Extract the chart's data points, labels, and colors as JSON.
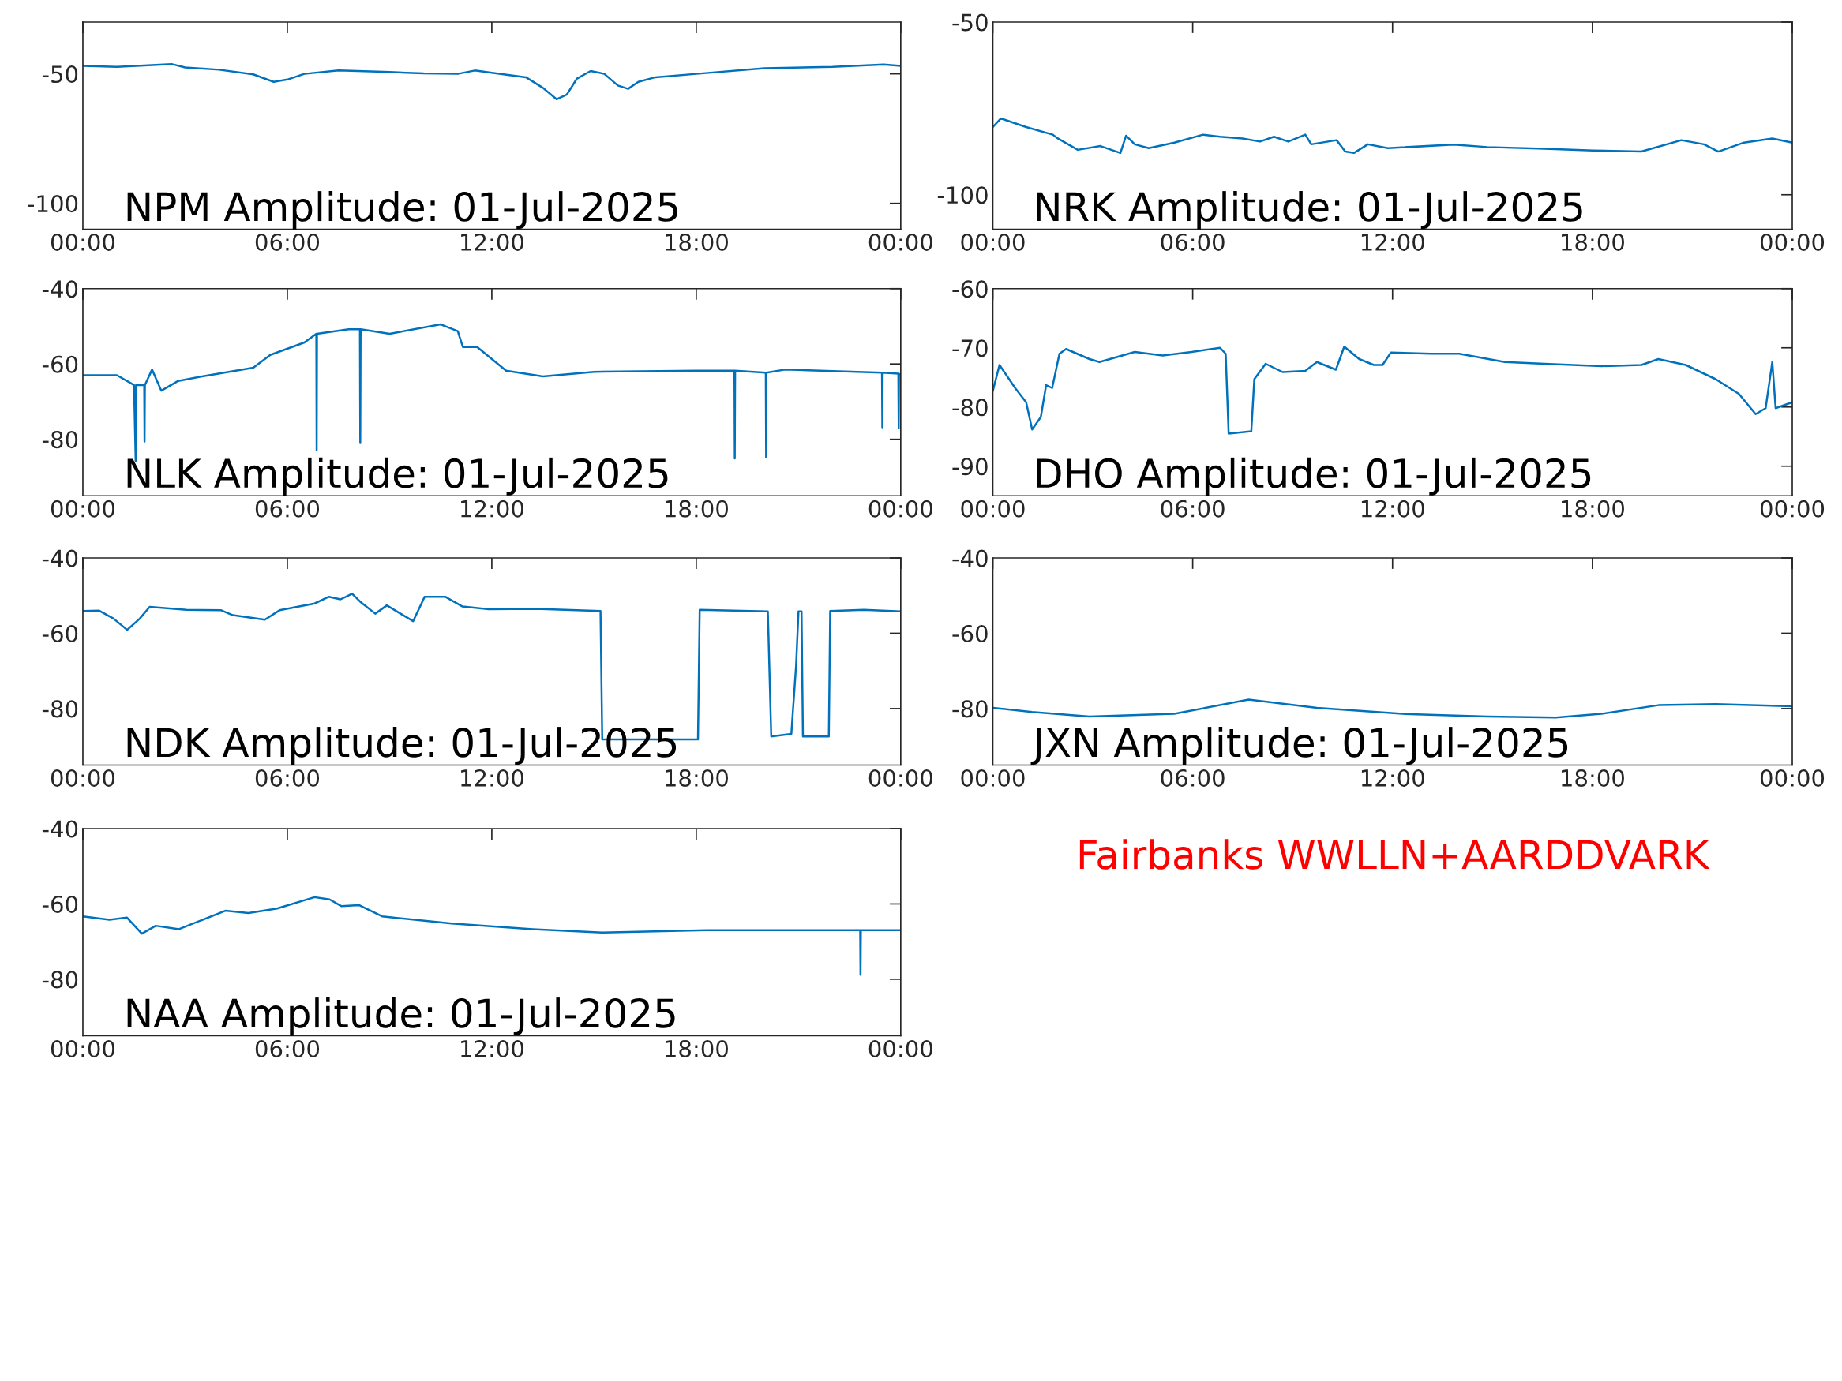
{
  "chart_data": [
    {
      "type": "line",
      "title": "NPM Amplitude: 01-Jul-2025",
      "xlim": [
        0,
        24
      ],
      "xticks": [
        {
          "value": 0,
          "label": "00:00"
        },
        {
          "value": 6,
          "label": "06:00"
        },
        {
          "value": 12,
          "label": "12:00"
        },
        {
          "value": 18,
          "label": "18:00"
        },
        {
          "value": 24,
          "label": "00:00"
        }
      ],
      "ylim": [
        -110,
        -30
      ],
      "yticks": [
        -100,
        -50
      ],
      "x": [
        0,
        1,
        2.6,
        3,
        4,
        5,
        5.6,
        6,
        6.5,
        7.5,
        9,
        10,
        11,
        11.5,
        12,
        13,
        13.5,
        13.9,
        14.2,
        14.5,
        14.9,
        15.3,
        15.7,
        16,
        16.3,
        16.8,
        18,
        20,
        22,
        23.5,
        24
      ],
      "series": [
        {
          "color": "#0072bd",
          "values": [
            -46.9,
            -47.3,
            -46.2,
            -47.5,
            -48.4,
            -50.2,
            -53.1,
            -52.2,
            -50,
            -48.7,
            -49.3,
            -49.8,
            -50,
            -48.7,
            -49.6,
            -51.3,
            -55.4,
            -59.8,
            -58,
            -51.8,
            -48.9,
            -50,
            -54.5,
            -55.8,
            -53.1,
            -51.3,
            -50,
            -47.8,
            -47.3,
            -46.4,
            -46.9
          ]
        }
      ]
    },
    {
      "type": "line",
      "title": "NRK Amplitude: 01-Jul-2025",
      "xlim": [
        0,
        24
      ],
      "xticks": [
        {
          "value": 0,
          "label": "00:00"
        },
        {
          "value": 6,
          "label": "06:00"
        },
        {
          "value": 12,
          "label": "12:00"
        },
        {
          "value": 18,
          "label": "18:00"
        },
        {
          "value": 24,
          "label": "00:00"
        }
      ],
      "ylim": [
        -110,
        -50
      ],
      "yticks": [
        -100,
        -50
      ],
      "x": [
        0,
        0.24,
        1,
        1.8,
        1.95,
        2.55,
        3.23,
        3.83,
        4,
        4.26,
        4.68,
        5.45,
        6.31,
        6.82,
        7.5,
        8.02,
        8.44,
        8.87,
        9.38,
        9.56,
        10.32,
        10.58,
        10.84,
        11.26,
        11.86,
        13.83,
        14.85,
        16.56,
        18.02,
        19.47,
        20.67,
        21.35,
        21.78,
        22.55,
        23.4,
        24
      ],
      "series": [
        {
          "color": "#0072bd",
          "values": [
            -80.4,
            -77.9,
            -80.4,
            -82.6,
            -83.7,
            -87,
            -85.9,
            -87.9,
            -82.9,
            -85.4,
            -86.5,
            -84.9,
            -82.6,
            -83.2,
            -83.7,
            -84.6,
            -83.2,
            -84.6,
            -82.6,
            -85.4,
            -84.2,
            -87.5,
            -87.9,
            -85.4,
            -86.5,
            -85.5,
            -86.2,
            -86.7,
            -87.2,
            -87.5,
            -84.2,
            -85.4,
            -87.5,
            -84.9,
            -83.7,
            -84.9
          ]
        }
      ]
    },
    {
      "type": "line",
      "title": "NLK Amplitude: 01-Jul-2025",
      "xlim": [
        0,
        24
      ],
      "xticks": [
        {
          "value": 0,
          "label": "00:00"
        },
        {
          "value": 6,
          "label": "06:00"
        },
        {
          "value": 12,
          "label": "12:00"
        },
        {
          "value": 18,
          "label": "18:00"
        },
        {
          "value": 24,
          "label": "00:00"
        }
      ],
      "ylim": [
        -95,
        -40
      ],
      "yticks": [
        -80,
        -60,
        -40
      ],
      "x": [
        0,
        1,
        1.5,
        1.55,
        1.56,
        1.8,
        1.81,
        1.82,
        2.03,
        2.3,
        2.8,
        3.5,
        5,
        5.5,
        6.5,
        6.85,
        6.86,
        6.87,
        7.8,
        8.13,
        8.14,
        8.15,
        9,
        10.5,
        11,
        11.15,
        11.57,
        12.42,
        13.5,
        15,
        18,
        19.12,
        19.13,
        19.14,
        20.04,
        20.05,
        20.06,
        20.6,
        23.45,
        23.46,
        23.47,
        23.93,
        23.94,
        23.95,
        24
      ],
      "series": [
        {
          "color": "#0072bd",
          "values": [
            -63,
            -63,
            -65.6,
            -85.9,
            -65.6,
            -65.6,
            -80.6,
            -65.6,
            -61.5,
            -67.1,
            -64.5,
            -63.3,
            -61,
            -57.6,
            -54.3,
            -52,
            -82.9,
            -52,
            -50.8,
            -50.8,
            -81,
            -50.8,
            -52,
            -49.5,
            -51.3,
            -55.5,
            -55.5,
            -61.8,
            -63.3,
            -62.1,
            -61.8,
            -61.8,
            -85.1,
            -61.8,
            -62.3,
            -84.8,
            -62.3,
            -61.5,
            -62.3,
            -76.8,
            -62.3,
            -62.6,
            -77.1,
            -62.6,
            -63
          ]
        }
      ]
    },
    {
      "type": "line",
      "title": "DHO Amplitude: 01-Jul-2025",
      "xlim": [
        0,
        24
      ],
      "xticks": [
        {
          "value": 0,
          "label": "00:00"
        },
        {
          "value": 6,
          "label": "06:00"
        },
        {
          "value": 12,
          "label": "12:00"
        },
        {
          "value": 18,
          "label": "18:00"
        },
        {
          "value": 24,
          "label": "00:00"
        }
      ],
      "ylim": [
        -95,
        -60
      ],
      "yticks": [
        -90,
        -80,
        -70,
        -60
      ],
      "x": [
        0,
        0.2,
        0.67,
        1,
        1.18,
        1.44,
        1.6,
        1.78,
        2,
        2.2,
        2.9,
        3.2,
        4.26,
        5.1,
        5.97,
        6.82,
        6.99,
        7.08,
        7.76,
        7.85,
        8.19,
        8.7,
        9.38,
        9.73,
        10.3,
        10.55,
        11,
        11.44,
        11.7,
        11.95,
        13.15,
        14,
        15.37,
        16.56,
        18.27,
        19.47,
        19.98,
        20.8,
        21.7,
        22.4,
        22.9,
        23.2,
        23.4,
        23.5,
        24
      ],
      "series": [
        {
          "color": "#0072bd",
          "values": [
            -77.3,
            -72.9,
            -76.8,
            -79.2,
            -83.8,
            -81.7,
            -76.3,
            -76.8,
            -71,
            -70.2,
            -71.9,
            -72.4,
            -70.7,
            -71.3,
            -70.7,
            -70,
            -71,
            -84.5,
            -84.1,
            -75.3,
            -72.7,
            -74.1,
            -73.9,
            -72.4,
            -73.7,
            -69.8,
            -71.9,
            -72.9,
            -72.9,
            -70.8,
            -71,
            -71,
            -72.4,
            -72.7,
            -73.1,
            -72.9,
            -71.9,
            -72.9,
            -75.3,
            -77.8,
            -81.2,
            -80.2,
            -72.4,
            -80.2,
            -79.2
          ]
        }
      ]
    },
    {
      "type": "line",
      "title": "NDK Amplitude: 01-Jul-2025",
      "xlim": [
        0,
        24
      ],
      "xticks": [
        {
          "value": 0,
          "label": "00:00"
        },
        {
          "value": 6,
          "label": "06:00"
        },
        {
          "value": 12,
          "label": "12:00"
        },
        {
          "value": 18,
          "label": "18:00"
        },
        {
          "value": 24,
          "label": "00:00"
        }
      ],
      "ylim": [
        -95,
        -40
      ],
      "yticks": [
        -80,
        -60,
        -40
      ],
      "x": [
        0,
        0.48,
        0.9,
        1.3,
        1.67,
        1.96,
        3.04,
        4.06,
        4.4,
        5.34,
        5.77,
        6.8,
        7.22,
        7.56,
        7.9,
        8.16,
        8.58,
        8.92,
        9.69,
        10.03,
        10.63,
        11.14,
        11.91,
        13.28,
        15.19,
        15.24,
        16.52,
        18.05,
        18.1,
        20.1,
        20.2,
        20.79,
        20.93,
        21,
        21.09,
        21.13,
        21.89,
        21.93,
        22.92,
        24
      ],
      "series": [
        {
          "color": "#0072bd",
          "values": [
            -54.1,
            -54,
            -56.1,
            -59.1,
            -56.1,
            -53,
            -53.8,
            -53.9,
            -55.2,
            -56.4,
            -53.9,
            -52.1,
            -50.3,
            -51,
            -49.5,
            -51.8,
            -54.8,
            -52.6,
            -56.8,
            -50.3,
            -50.3,
            -52.9,
            -53.6,
            -53.5,
            -54.1,
            -88.2,
            -88.2,
            -88.2,
            -53.8,
            -54.2,
            -87.4,
            -86.7,
            -68.5,
            -54.2,
            -54.2,
            -87.4,
            -87.4,
            -54.1,
            -53.8,
            -54.2
          ]
        }
      ]
    },
    {
      "type": "line",
      "title": "JXN Amplitude: 01-Jul-2025",
      "xlim": [
        0,
        24
      ],
      "xticks": [
        {
          "value": 0,
          "label": "00:00"
        },
        {
          "value": 6,
          "label": "06:00"
        },
        {
          "value": 12,
          "label": "12:00"
        },
        {
          "value": 18,
          "label": "18:00"
        },
        {
          "value": 24,
          "label": "00:00"
        }
      ],
      "ylim": [
        -95,
        -40
      ],
      "yticks": [
        -80,
        -60,
        -40
      ],
      "x": [
        0,
        1.18,
        2.9,
        5.45,
        7.68,
        9.73,
        12.3,
        14.85,
        16.9,
        18.27,
        19.98,
        21.7,
        24
      ],
      "series": [
        {
          "color": "#0072bd",
          "values": [
            -79.8,
            -80.9,
            -82.1,
            -81.4,
            -77.6,
            -79.8,
            -81.4,
            -82.1,
            -82.4,
            -81.4,
            -79.1,
            -78.8,
            -79.4
          ]
        }
      ]
    },
    {
      "type": "line",
      "title": "NAA Amplitude: 01-Jul-2025",
      "xlim": [
        0,
        24
      ],
      "xticks": [
        {
          "value": 0,
          "label": "00:00"
        },
        {
          "value": 6,
          "label": "06:00"
        },
        {
          "value": 12,
          "label": "12:00"
        },
        {
          "value": 18,
          "label": "18:00"
        },
        {
          "value": 24,
          "label": "00:00"
        }
      ],
      "ylim": [
        -95,
        -40
      ],
      "yticks": [
        -80,
        -60,
        -40
      ],
      "x": [
        0,
        0.78,
        1.29,
        1.73,
        2.14,
        2.82,
        4.18,
        4.86,
        5.7,
        6.8,
        7.24,
        7.59,
        8.1,
        8.78,
        10.82,
        13.2,
        15.24,
        18.3,
        21.7,
        22.81,
        22.82,
        22.83,
        24
      ],
      "series": [
        {
          "color": "#0072bd",
          "values": [
            -63.3,
            -64.2,
            -63.6,
            -67.9,
            -65.8,
            -66.7,
            -61.8,
            -62.4,
            -61.2,
            -58.2,
            -58.8,
            -60.6,
            -60.3,
            -63.3,
            -65.2,
            -66.7,
            -67.6,
            -67,
            -67,
            -67,
            -78.8,
            -67,
            -67
          ]
        }
      ]
    },
    {
      "type": "other",
      "color": "#ff0000",
      "annotations": [
        "Fairbanks WWLLN+AARDDVARK"
      ]
    }
  ]
}
